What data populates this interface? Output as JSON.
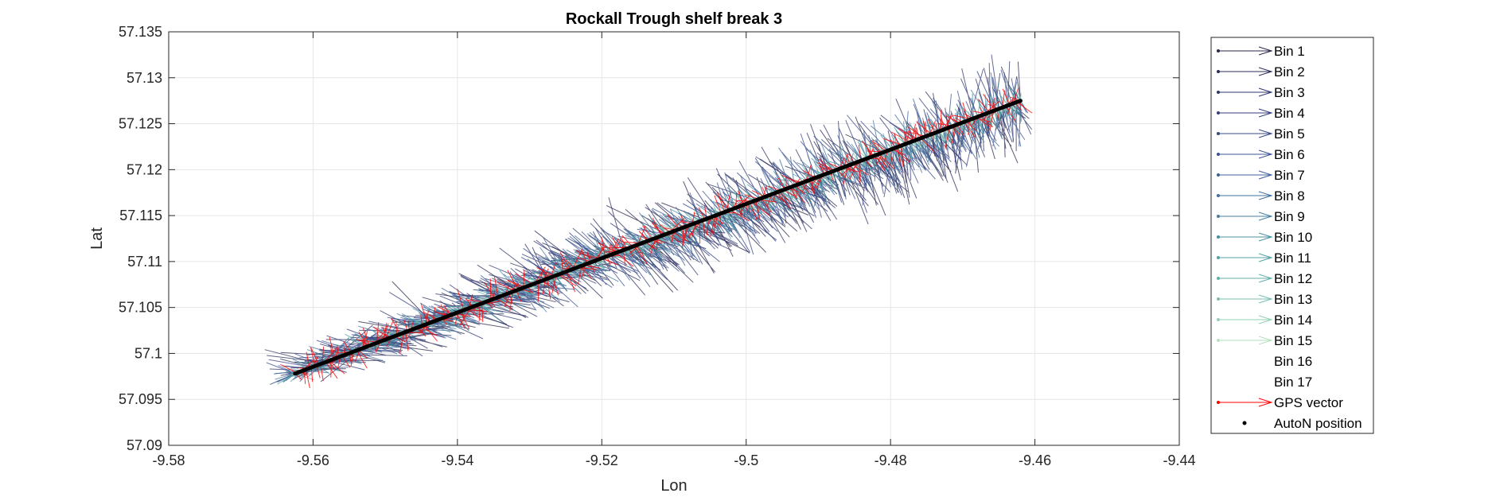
{
  "chart_data": {
    "type": "quiver",
    "title": "Rockall Trough shelf break 3",
    "xlabel": "Lon",
    "ylabel": "Lat",
    "xlim": [
      -9.58,
      -9.44
    ],
    "ylim": [
      57.09,
      57.135
    ],
    "xticks": [
      -9.58,
      -9.56,
      -9.54,
      -9.52,
      -9.5,
      -9.48,
      -9.46,
      -9.44
    ],
    "xtick_labels": [
      "-9.58",
      "-9.56",
      "-9.54",
      "-9.52",
      "-9.5",
      "-9.48",
      "-9.46",
      "-9.44"
    ],
    "yticks": [
      57.09,
      57.095,
      57.1,
      57.105,
      57.11,
      57.115,
      57.12,
      57.125,
      57.13,
      57.135
    ],
    "ytick_labels": [
      "57.09",
      "57.095",
      "57.1",
      "57.105",
      "57.11",
      "57.115",
      "57.12",
      "57.125",
      "57.13",
      "57.135"
    ],
    "grid": true,
    "legend_location": "outside-right",
    "track": {
      "name": "AutoN position",
      "start": [
        -9.5625,
        57.0978
      ],
      "end": [
        -9.462,
        57.1275
      ],
      "color": "#000000"
    },
    "series": [
      {
        "name": "Bin 1",
        "color": "#29264a"
      },
      {
        "name": "Bin 2",
        "color": "#2b2d5c"
      },
      {
        "name": "Bin 3",
        "color": "#2f356d"
      },
      {
        "name": "Bin 4",
        "color": "#333e7c"
      },
      {
        "name": "Bin 5",
        "color": "#37488a"
      },
      {
        "name": "Bin 6",
        "color": "#3a5392"
      },
      {
        "name": "Bin 7",
        "color": "#3d6197"
      },
      {
        "name": "Bin 8",
        "color": "#40709c"
      },
      {
        "name": "Bin 9",
        "color": "#457fa0"
      },
      {
        "name": "Bin 10",
        "color": "#4b8fa4"
      },
      {
        "name": "Bin 11",
        "color": "#549fa8"
      },
      {
        "name": "Bin 12",
        "color": "#62afac"
      },
      {
        "name": "Bin 13",
        "color": "#78c0b0"
      },
      {
        "name": "Bin 14",
        "color": "#94d0b4"
      },
      {
        "name": "Bin 15",
        "color": "#b6e0bd"
      },
      {
        "name": "Bin 16",
        "color": "#ffffff"
      },
      {
        "name": "Bin 17",
        "color": "#ffffff"
      },
      {
        "name": "GPS vector",
        "color": "#ff0000"
      },
      {
        "name": "AutoN position",
        "color": "#000000"
      }
    ]
  }
}
